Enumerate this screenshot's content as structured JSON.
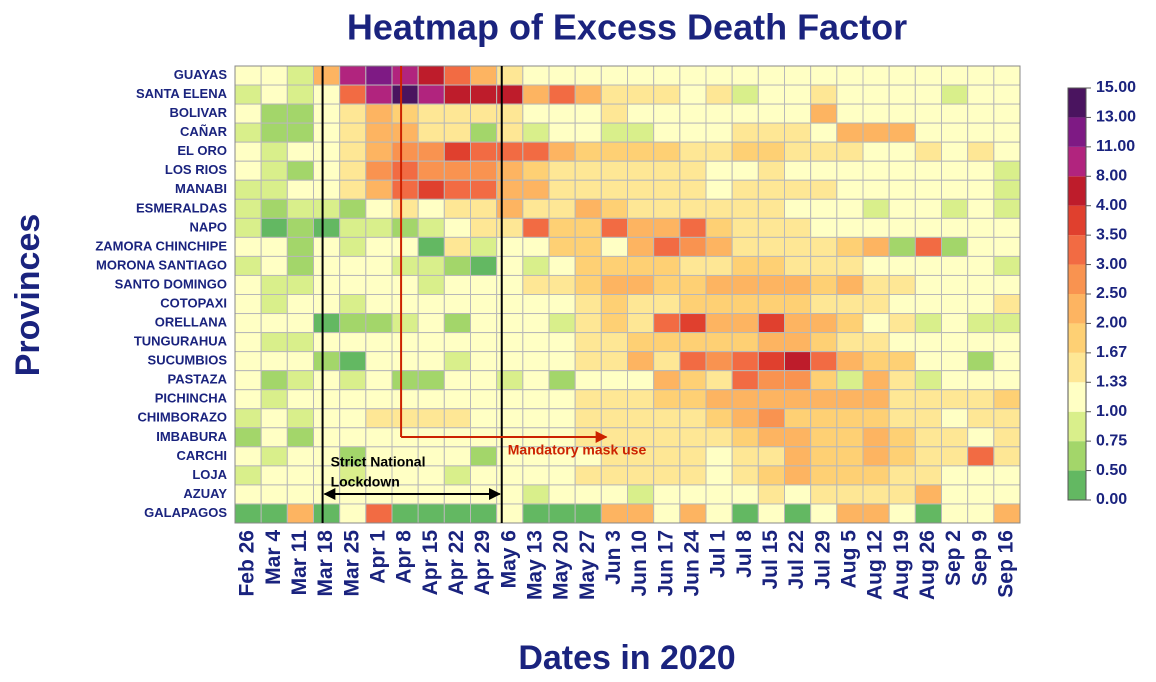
{
  "chart_data": {
    "type": "heatmap",
    "title": "Heatmap of Excess Death Factor",
    "x_label": "Dates in 2020",
    "y_label": "Provinces",
    "columns": [
      "Feb 26",
      "Mar 4",
      "Mar 11",
      "Mar 18",
      "Mar 25",
      "Apr 1",
      "Apr 8",
      "Apr 15",
      "Apr 22",
      "Apr 29",
      "May 6",
      "May 13",
      "May 20",
      "May 27",
      "Jun 3",
      "Jun 10",
      "Jun 17",
      "Jun 24",
      "Jul 1",
      "Jul 8",
      "Jul 15",
      "Jul 22",
      "Jul 29",
      "Aug 5",
      "Aug 12",
      "Aug 19",
      "Aug 26",
      "Sep 2",
      "Sep 9",
      "Sep 16"
    ],
    "rows": [
      "GUAYAS",
      "SANTA ELENA",
      "BOLIVAR",
      "CAÑAR",
      "EL ORO",
      "LOS RIOS",
      "MANABI",
      "ESMERALDAS",
      "NAPO",
      "ZAMORA CHINCHIPE",
      "MORONA SANTIAGO",
      "SANTO DOMINGO",
      "COTOPAXI",
      "ORELLANA",
      "TUNGURAHUA",
      "SUCUMBIOS",
      "PASTAZA",
      "PICHINCHA",
      "CHIMBORAZO",
      "IMBABURA",
      "CARCHI",
      "LOJA",
      "AZUAY",
      "GALAPAGOS"
    ],
    "values": [
      [
        1.2,
        1.1,
        0.9,
        2.2,
        9,
        12,
        10,
        6,
        3.3,
        2.2,
        1.5,
        1.3,
        1.2,
        1.2,
        1.1,
        1.2,
        1.2,
        1.1,
        1.2,
        1.1,
        1.2,
        1.1,
        1.2,
        1.1,
        1.2,
        1.2,
        1.1,
        1.2,
        1.1,
        1.2
      ],
      [
        0.9,
        1.1,
        0.9,
        1.1,
        3.2,
        9,
        14,
        10,
        6,
        6,
        6,
        2.2,
        3.2,
        2.2,
        1.5,
        1.5,
        1.5,
        1.2,
        1.4,
        0.9,
        1.2,
        1.2,
        1.4,
        1.3,
        1.2,
        1.2,
        1.1,
        0.9,
        1.2,
        1.2
      ],
      [
        1.2,
        0.7,
        0.7,
        1.2,
        1.4,
        2.2,
        1.8,
        1.5,
        1.4,
        1.5,
        1.5,
        1.2,
        1.2,
        1.2,
        1.4,
        1.2,
        1.3,
        1.2,
        1.2,
        1.2,
        1.2,
        1.2,
        2.2,
        1.2,
        1.2,
        1.3,
        1.2,
        1.2,
        1.2,
        1.2
      ],
      [
        0.9,
        0.7,
        0.7,
        1.2,
        1.5,
        2.2,
        2.2,
        1.5,
        1.4,
        0.7,
        1.5,
        0.9,
        1.2,
        1.2,
        0.9,
        0.9,
        1.2,
        1.2,
        1.3,
        1.5,
        1.5,
        1.5,
        1.2,
        2.2,
        2.2,
        2.2,
        1.3,
        1.2,
        1.2,
        1.2
      ],
      [
        1.2,
        0.9,
        1.2,
        1.2,
        1.5,
        2.2,
        2.7,
        2.7,
        3.7,
        3.3,
        3.3,
        3.2,
        2.2,
        1.8,
        1.8,
        1.8,
        1.8,
        1.5,
        1.5,
        1.8,
        1.8,
        1.5,
        1.5,
        1.5,
        1.3,
        1.3,
        1.5,
        1.3,
        1.5,
        1.3
      ],
      [
        1.2,
        0.9,
        0.7,
        1.2,
        1.5,
        2.5,
        3.3,
        2.7,
        2.7,
        2.7,
        2.2,
        1.8,
        1.5,
        1.5,
        1.4,
        1.4,
        1.4,
        1.4,
        1.3,
        1.3,
        1.4,
        1.3,
        1.3,
        1.3,
        1.2,
        1.3,
        1.2,
        1.3,
        1.2,
        0.9
      ],
      [
        0.9,
        0.9,
        1.2,
        1.2,
        1.5,
        2.2,
        3.3,
        3.7,
        3.2,
        3.2,
        2.2,
        2.2,
        1.5,
        1.5,
        1.4,
        1.4,
        1.4,
        1.4,
        1.2,
        1.5,
        1.4,
        1.4,
        1.4,
        1.3,
        1.3,
        1.2,
        1.2,
        1.2,
        1.2,
        0.9
      ],
      [
        0.9,
        0.7,
        0.9,
        0.9,
        0.7,
        1.1,
        1.4,
        1.3,
        1.5,
        1.5,
        2.2,
        1.5,
        1.5,
        2.2,
        1.8,
        1.5,
        1.5,
        1.5,
        1.5,
        1.5,
        1.5,
        1.3,
        1.2,
        1.2,
        0.9,
        1.2,
        1.2,
        0.9,
        1.2,
        0.9
      ],
      [
        0.9,
        0.4,
        0.7,
        0.4,
        0.9,
        0.9,
        0.7,
        0.9,
        1.2,
        1.5,
        1.5,
        3.2,
        1.8,
        1.8,
        3.2,
        2.2,
        2.2,
        3.2,
        1.8,
        1.5,
        1.5,
        1.5,
        1.3,
        1.3,
        1.2,
        1.3,
        1.2,
        1.2,
        1.2,
        1.2
      ],
      [
        1.2,
        1.2,
        0.7,
        1.2,
        0.9,
        1.2,
        1.2,
        0.4,
        1.5,
        0.9,
        1.2,
        1.2,
        1.8,
        1.8,
        1.2,
        2.2,
        3.2,
        2.7,
        2.2,
        1.5,
        1.5,
        1.5,
        1.5,
        1.8,
        2.2,
        0.7,
        3.3,
        0.7,
        1.2,
        1.2
      ],
      [
        0.9,
        1.3,
        0.7,
        1.2,
        1.2,
        1.2,
        0.9,
        0.9,
        0.7,
        0.4,
        1.2,
        0.9,
        1.2,
        1.8,
        1.8,
        1.8,
        1.8,
        1.5,
        1.5,
        1.8,
        1.8,
        1.5,
        1.5,
        1.5,
        1.3,
        1.2,
        1.2,
        1.2,
        1.2,
        0.9
      ],
      [
        1.3,
        0.9,
        0.9,
        1.2,
        1.2,
        1.3,
        1.3,
        0.9,
        1.2,
        1.2,
        1.2,
        1.5,
        1.5,
        1.8,
        2.2,
        2.2,
        1.8,
        1.8,
        2.2,
        2.2,
        2.2,
        2.2,
        1.8,
        2.2,
        1.5,
        1.5,
        1.3,
        1.2,
        1.3,
        1.2
      ],
      [
        1.2,
        0.9,
        1.2,
        1.2,
        0.9,
        1.2,
        1.2,
        1.2,
        1.2,
        1.2,
        1.2,
        1.2,
        1.3,
        1.5,
        1.8,
        1.5,
        1.5,
        1.8,
        1.8,
        1.8,
        1.8,
        1.8,
        1.5,
        1.5,
        1.5,
        1.3,
        1.2,
        1.3,
        1.2,
        1.5
      ],
      [
        1.2,
        1.1,
        1.2,
        0.4,
        0.7,
        0.7,
        0.9,
        1.1,
        0.7,
        1.2,
        1.2,
        1.3,
        0.9,
        1.5,
        1.8,
        1.5,
        3.2,
        3.7,
        2.2,
        2.2,
        3.5,
        2.2,
        2.2,
        1.8,
        1.1,
        1.5,
        0.9,
        1.2,
        0.9,
        0.9
      ],
      [
        1.2,
        0.9,
        0.9,
        1.2,
        1.2,
        1.2,
        1.2,
        1.2,
        1.2,
        1.2,
        1.2,
        1.2,
        1.3,
        1.5,
        1.5,
        1.8,
        1.8,
        1.8,
        1.8,
        1.8,
        2.2,
        2.2,
        1.8,
        1.5,
        1.5,
        1.3,
        1.2,
        1.3,
        1.2,
        1.2
      ],
      [
        1.3,
        1.2,
        1.2,
        0.7,
        0.4,
        1.2,
        1.2,
        1.2,
        0.9,
        1.2,
        1.2,
        1.2,
        1.3,
        1.5,
        1.5,
        2.2,
        1.5,
        3.2,
        2.7,
        3.3,
        3.7,
        4.5,
        3.2,
        2.2,
        1.8,
        1.8,
        1.2,
        1.2,
        0.7,
        1.2
      ],
      [
        1.2,
        0.7,
        0.9,
        1.2,
        0.9,
        1.2,
        0.7,
        0.7,
        1.2,
        1.2,
        0.9,
        1.2,
        0.7,
        1.2,
        1.2,
        1.3,
        2.2,
        1.8,
        1.5,
        3.2,
        2.7,
        2.7,
        1.8,
        0.9,
        2.2,
        1.5,
        0.9,
        1.3,
        1.2,
        1.2
      ],
      [
        1.2,
        0.9,
        1.2,
        1.2,
        1.3,
        1.3,
        1.3,
        1.2,
        1.2,
        1.2,
        1.2,
        1.2,
        1.3,
        1.5,
        1.5,
        1.5,
        1.8,
        1.8,
        2.2,
        2.2,
        2.2,
        2.2,
        2.2,
        2.2,
        2.2,
        1.5,
        1.5,
        1.5,
        1.5,
        1.8
      ],
      [
        0.9,
        1.2,
        0.9,
        1.2,
        1.2,
        1.5,
        1.5,
        1.5,
        1.5,
        1.3,
        1.2,
        1.2,
        1.3,
        1.5,
        1.5,
        1.5,
        1.5,
        1.5,
        1.8,
        2.2,
        2.7,
        1.8,
        1.8,
        1.8,
        1.8,
        1.5,
        1.5,
        1.3,
        1.5,
        1.5
      ],
      [
        0.7,
        1.2,
        0.7,
        1.2,
        1.2,
        1.2,
        1.3,
        1.2,
        1.3,
        1.2,
        1.2,
        1.2,
        1.3,
        1.5,
        1.5,
        1.5,
        1.5,
        1.5,
        1.5,
        1.8,
        2.2,
        2.2,
        1.8,
        1.8,
        2.2,
        1.8,
        1.5,
        1.5,
        1.3,
        1.5
      ],
      [
        1.2,
        0.9,
        1.2,
        1.2,
        0.7,
        1.2,
        1.2,
        1.2,
        1.3,
        0.7,
        1.2,
        1.2,
        1.2,
        1.3,
        1.5,
        1.5,
        1.5,
        1.5,
        1.3,
        1.5,
        1.5,
        2.2,
        1.8,
        1.8,
        2.2,
        1.8,
        1.5,
        1.5,
        3.3,
        1.5
      ],
      [
        0.9,
        1.2,
        1.2,
        1.2,
        0.9,
        1.2,
        1.2,
        1.2,
        0.9,
        1.2,
        1.2,
        1.2,
        1.3,
        1.5,
        1.5,
        1.5,
        1.5,
        1.5,
        1.3,
        1.5,
        1.8,
        2.2,
        1.8,
        1.8,
        1.8,
        1.5,
        1.5,
        1.3,
        1.3,
        1.3
      ],
      [
        1.2,
        1.2,
        1.2,
        1.2,
        1.2,
        1.2,
        1.2,
        1.2,
        1.2,
        1.2,
        1.2,
        0.9,
        1.2,
        1.3,
        1.2,
        0.9,
        1.2,
        1.3,
        1.2,
        1.2,
        1.5,
        1.3,
        1.5,
        1.5,
        1.5,
        1.5,
        2.2,
        1.3,
        1.3,
        1.2
      ],
      [
        0.4,
        0.4,
        2.2,
        0.4,
        1.2,
        3.2,
        0.4,
        0.4,
        0.4,
        0.4,
        1.2,
        0.4,
        0.4,
        0.4,
        2.2,
        2.2,
        1.2,
        2.2,
        1.2,
        0.4,
        1.2,
        0.4,
        1.2,
        2.2,
        2.2,
        1.2,
        0.4,
        1.2,
        1.2,
        2.2
      ]
    ],
    "color_breaks": [
      {
        "value": 0,
        "label": "0.00"
      },
      {
        "value": 0.5,
        "label": "0.50"
      },
      0.75,
      {
        "value": 1,
        "label": "1.00"
      },
      1.33,
      1.67,
      {
        "value": 2,
        "label": "2.00"
      },
      {
        "value": 2.5,
        "label": "2.50"
      },
      {
        "value": 3,
        "label": "3.00"
      },
      {
        "value": 3.5,
        "label": "3.50"
      },
      {
        "value": 4,
        "label": "4.00"
      },
      {
        "value": 8,
        "label": "8.00"
      },
      {
        "value": 11,
        "label": "11.00"
      },
      {
        "value": 13,
        "label": "13.00"
      },
      {
        "value": 15,
        "label": "15.00"
      }
    ],
    "colors": [
      "#63b862",
      "#a3d66a",
      "#d9ef8b",
      "#ffffc4",
      "#fee795",
      "#fed074",
      "#fdb461",
      "#f99350",
      "#f26b43",
      "#e0402e",
      "#be1c2b",
      "#b1247e",
      "#7e1a84",
      "#4a145f"
    ],
    "annotations": [
      {
        "text": [
          "Strict National",
          "Lockdown"
        ],
        "start": "Mar 18",
        "end": "May 6",
        "color": "#000000"
      },
      {
        "text": [
          "Mandatory mask use"
        ],
        "start": "Apr 8",
        "end": "Jun 3",
        "color": "#cc2200"
      }
    ]
  }
}
